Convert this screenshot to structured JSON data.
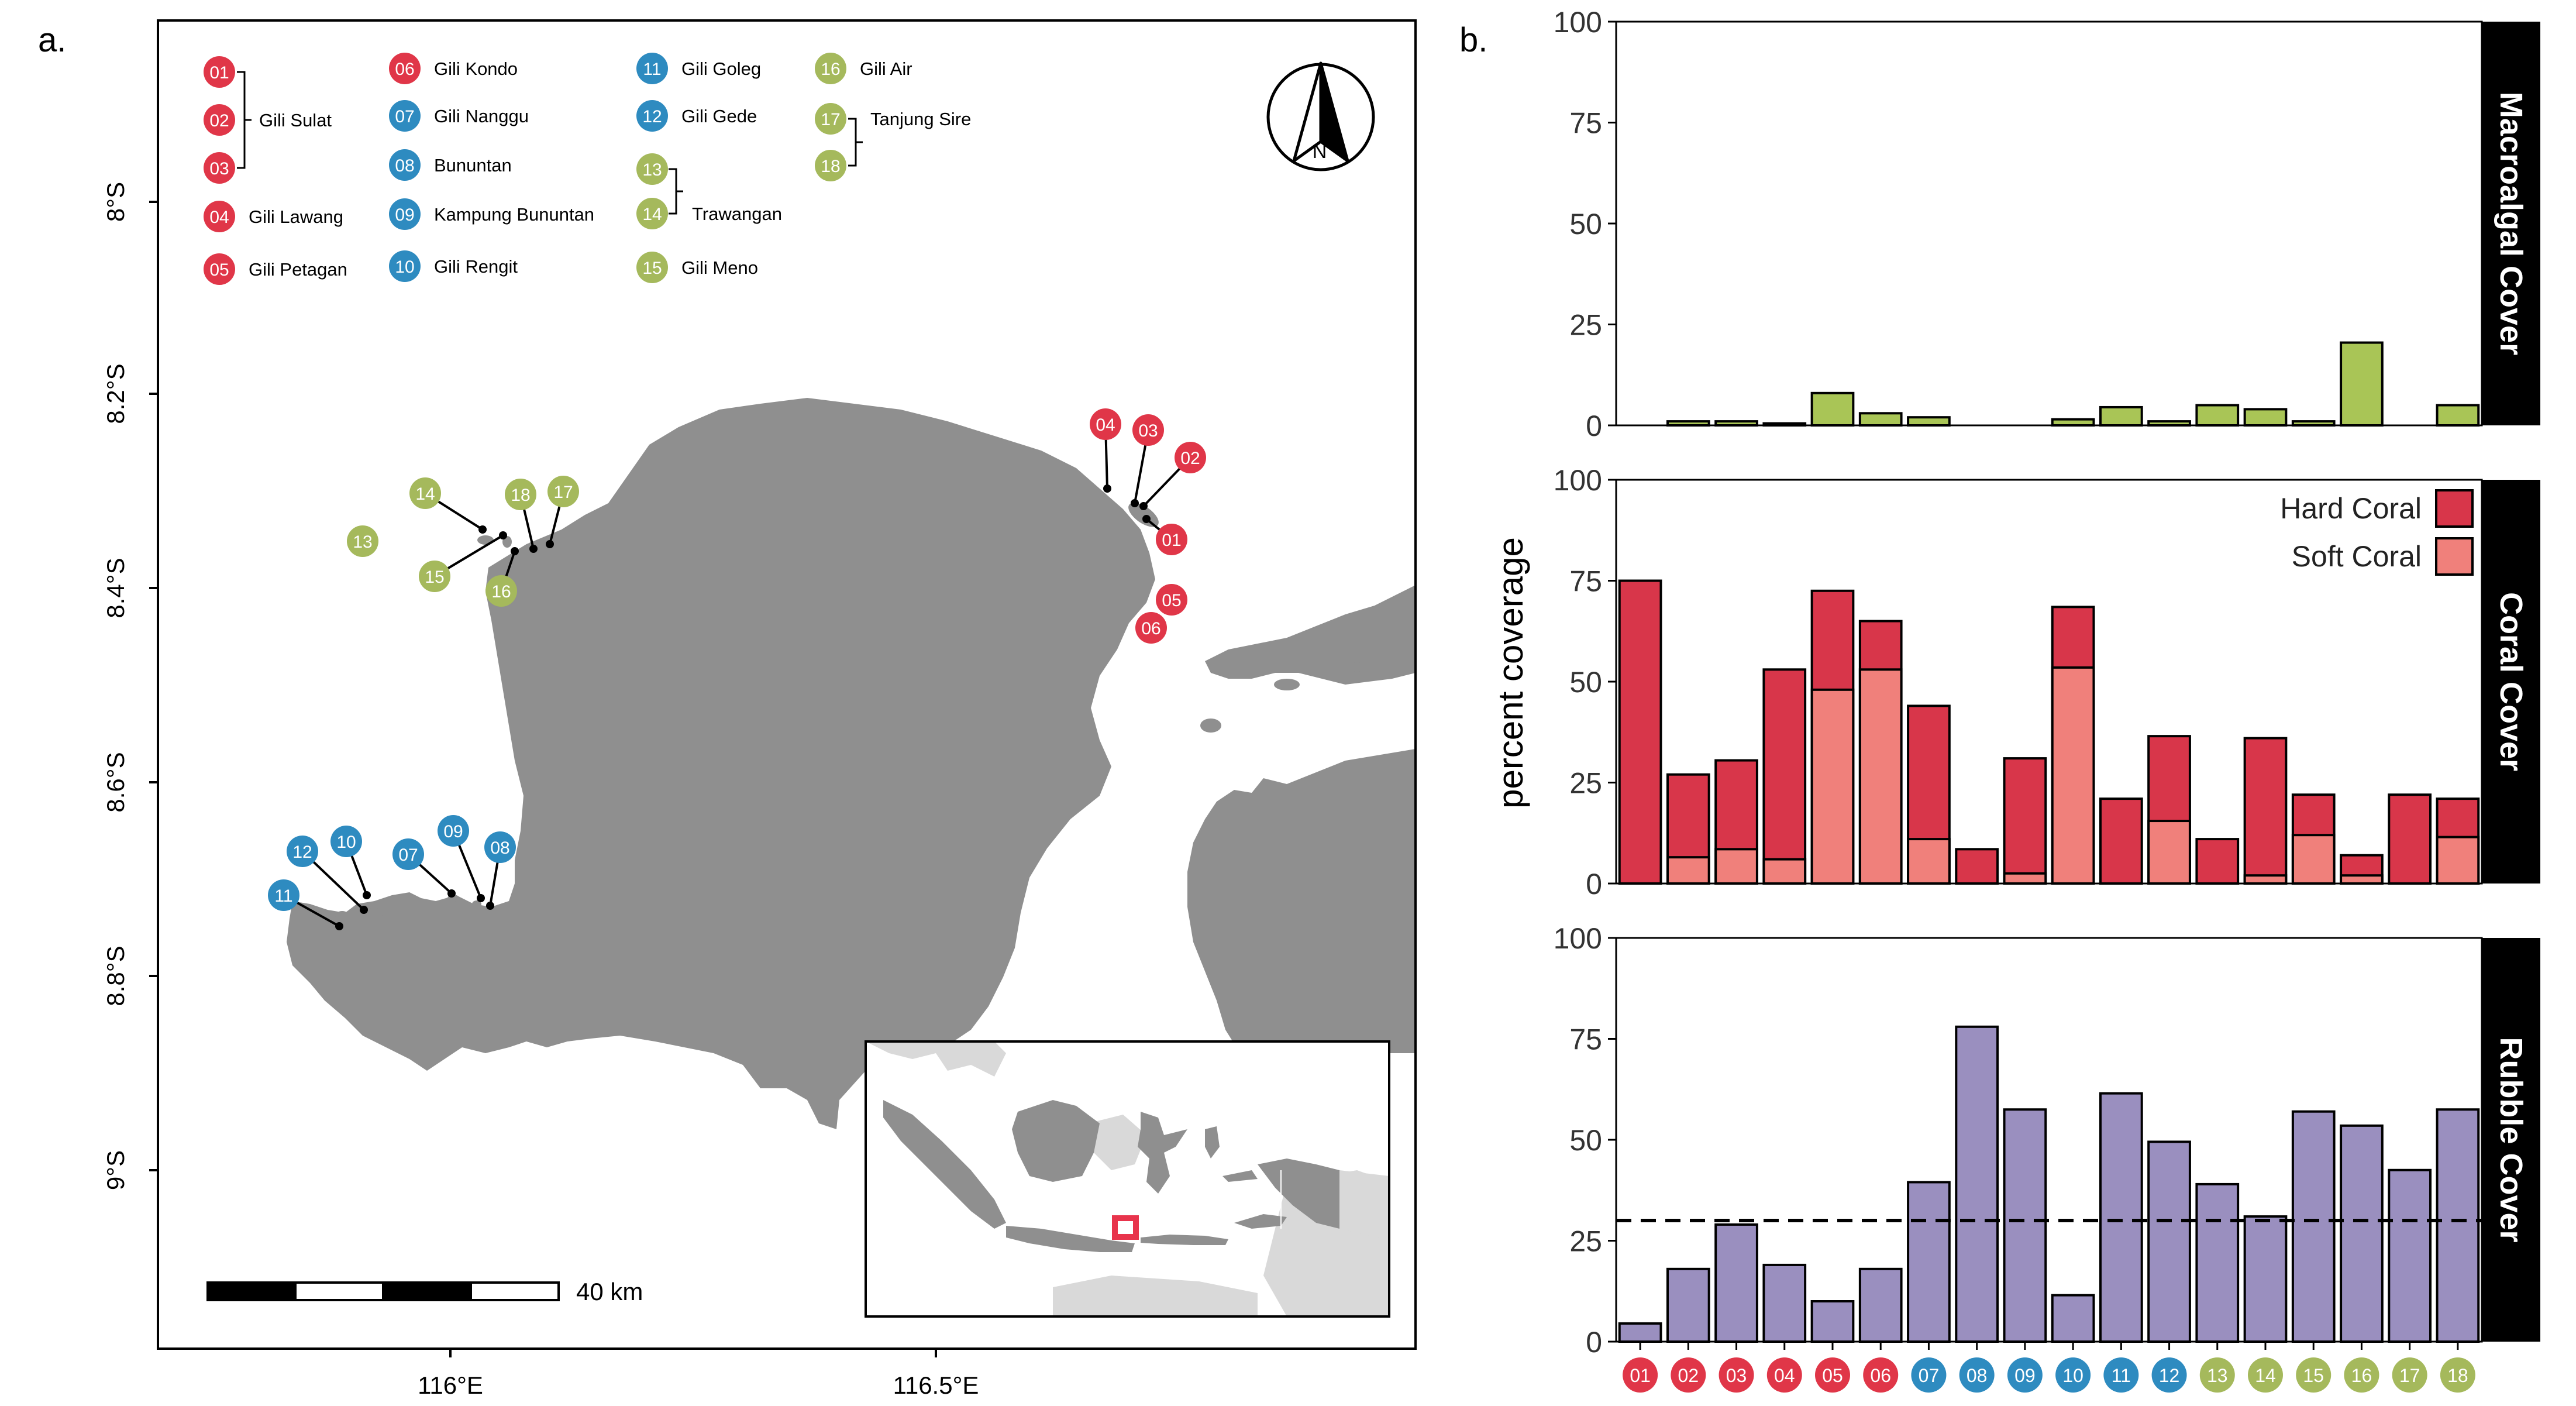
{
  "colors": {
    "red": "#E03648",
    "blue": "#2E8BC0",
    "green": "#A5B95C",
    "land": "#8F8F8F",
    "inset_land_other": "#D9D9D9",
    "hard_coral": "#D8364A",
    "soft_coral": "#F0807B",
    "macroalgal": "#A9C556",
    "rubble": "#9A8FBF"
  },
  "panel_a": {
    "label": "a.",
    "y_ticks": [
      "8°S",
      "8.2°S",
      "8.4°S",
      "8.6°S",
      "8.8°S",
      "9°S"
    ],
    "x_ticks": [
      "116°E",
      "116.5°E"
    ],
    "scale_label": "40 km",
    "north_label": "N",
    "legend": [
      {
        "num": "01",
        "group": "red"
      },
      {
        "num": "02",
        "group": "red",
        "name": "Gili Sulat"
      },
      {
        "num": "03",
        "group": "red"
      },
      {
        "num": "04",
        "group": "red",
        "name": "Gili Lawang"
      },
      {
        "num": "05",
        "group": "red",
        "name": "Gili Petagan"
      },
      {
        "num": "06",
        "group": "red",
        "name": "Gili Kondo"
      },
      {
        "num": "07",
        "group": "blue",
        "name": "Gili Nanggu"
      },
      {
        "num": "08",
        "group": "blue",
        "name": "Bununtan"
      },
      {
        "num": "09",
        "group": "blue",
        "name": "Kampung Bununtan"
      },
      {
        "num": "10",
        "group": "blue",
        "name": "Gili Rengit"
      },
      {
        "num": "11",
        "group": "blue",
        "name": "Gili Goleg"
      },
      {
        "num": "12",
        "group": "blue",
        "name": "Gili Gede"
      },
      {
        "num": "13",
        "group": "green"
      },
      {
        "num": "14",
        "group": "green",
        "name": "Trawangan"
      },
      {
        "num": "15",
        "group": "green",
        "name": "Gili Meno"
      },
      {
        "num": "16",
        "group": "green",
        "name": "Gili Air"
      },
      {
        "num": "17",
        "group": "green",
        "name": "Tanjung Sire"
      },
      {
        "num": "18",
        "group": "green"
      }
    ]
  },
  "chart_data": {
    "type": "bar",
    "label": "b.",
    "ylabel": "percent coverage",
    "ylim": [
      0,
      100
    ],
    "y_ticks": [
      "0",
      "25",
      "50",
      "75",
      "100"
    ],
    "categories": [
      "01",
      "02",
      "03",
      "04",
      "05",
      "06",
      "07",
      "08",
      "09",
      "10",
      "11",
      "12",
      "13",
      "14",
      "15",
      "16",
      "17",
      "18"
    ],
    "category_groups": [
      "red",
      "red",
      "red",
      "red",
      "red",
      "red",
      "blue",
      "blue",
      "blue",
      "blue",
      "blue",
      "blue",
      "green",
      "green",
      "green",
      "green",
      "green",
      "green"
    ],
    "panels": [
      {
        "strip": "Macroalgal Cover",
        "series": [
          {
            "values": [
              0,
              1,
              1,
              0.5,
              8,
              3,
              2,
              0,
              0,
              1.5,
              4.5,
              1,
              5,
              4,
              1,
              20.5,
              0,
              5
            ]
          }
        ]
      },
      {
        "strip": "Coral Cover",
        "legend": [
          "Hard Coral",
          "Soft Coral"
        ],
        "series": [
          {
            "name": "Hard Coral",
            "values": [
              75,
              27,
              30.5,
              53,
              72.5,
              65,
              44,
              8.5,
              31,
              68.5,
              21,
              36.5,
              11,
              36,
              22,
              7,
              22,
              21
            ]
          },
          {
            "name": "Soft Coral",
            "values": [
              0,
              6.5,
              8.5,
              6,
              48,
              53,
              11,
              0,
              2.5,
              53.5,
              0,
              15.5,
              0,
              2,
              12,
              2,
              0,
              11.5
            ]
          }
        ]
      },
      {
        "strip": "Rubble Cover",
        "reference_line": 30,
        "series": [
          {
            "values": [
              4.5,
              18,
              29,
              19,
              10,
              18,
              39.5,
              78,
              57.5,
              11.5,
              61.5,
              49.5,
              39,
              31,
              57,
              53.5,
              42.5,
              57.5
            ]
          }
        ]
      }
    ]
  }
}
